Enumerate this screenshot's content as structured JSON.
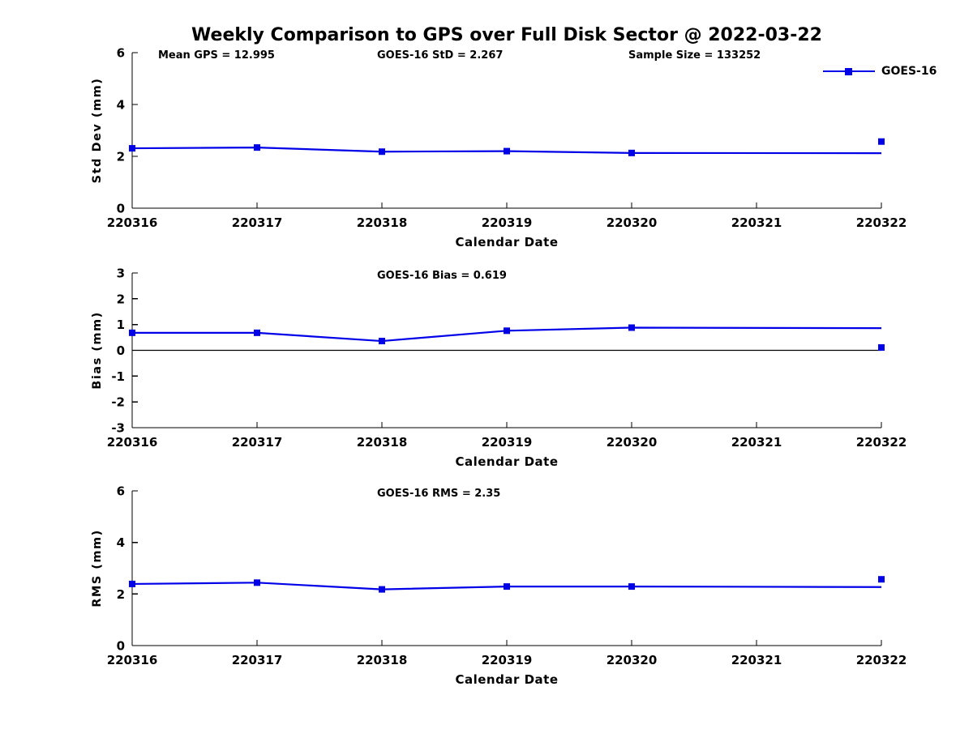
{
  "title": "Weekly Comparison to GPS over Full Disk Sector @ 2022-03-22",
  "legend": {
    "label": "GOES-16"
  },
  "colors": {
    "series": "#0000e8",
    "axis": "#000000",
    "zero_line": "#000000",
    "text": "#000000"
  },
  "chart_data": [
    {
      "type": "line",
      "id": "std-dev",
      "annotations": [
        "Mean GPS = 12.995",
        "GOES-16 StD = 2.267",
        "Sample Size = 133252"
      ],
      "ylabel": "Std Dev (mm)",
      "xlabel": "Calendar Date",
      "ylim": [
        0,
        6
      ],
      "yticks": [
        0,
        2,
        4,
        6
      ],
      "xticklabels": [
        "220316",
        "220317",
        "220318",
        "220319",
        "220320",
        "220321",
        "220322"
      ],
      "legend_entry": "GOES-16",
      "series": [
        {
          "name": "GOES-16",
          "x": [
            "220316",
            "220317",
            "220318",
            "220319",
            "220320",
            "220322"
          ],
          "y": [
            2.31,
            2.34,
            2.18,
            2.2,
            2.13,
            2.12
          ],
          "markers_at": [
            "220316",
            "220317",
            "220318",
            "220319",
            "220320"
          ]
        }
      ],
      "extra_point": {
        "x": "220322",
        "y": 2.57
      },
      "zero_line": false
    },
    {
      "type": "line",
      "id": "bias",
      "annotations": [
        "GOES-16 Bias  = 0.619"
      ],
      "ylabel": "Bias (mm)",
      "xlabel": "Calendar Date",
      "ylim": [
        -3,
        3
      ],
      "yticks": [
        -3,
        -2,
        -1,
        0,
        1,
        2,
        3
      ],
      "xticklabels": [
        "220316",
        "220317",
        "220318",
        "220319",
        "220320",
        "220321",
        "220322"
      ],
      "legend_entry": "GOES-16",
      "series": [
        {
          "name": "GOES-16",
          "x": [
            "220316",
            "220317",
            "220318",
            "220319",
            "220320",
            "220322"
          ],
          "y": [
            0.68,
            0.68,
            0.36,
            0.76,
            0.88,
            0.86
          ],
          "markers_at": [
            "220316",
            "220317",
            "220318",
            "220319",
            "220320"
          ]
        }
      ],
      "extra_point": {
        "x": "220322",
        "y": 0.11
      },
      "zero_line": true
    },
    {
      "type": "line",
      "id": "rms",
      "annotations": [
        "GOES-16 RMS = 2.35"
      ],
      "ylabel": "RMS (mm)",
      "xlabel": "Calendar Date",
      "ylim": [
        0,
        6
      ],
      "yticks": [
        0,
        2,
        4,
        6
      ],
      "xticklabels": [
        "220316",
        "220317",
        "220318",
        "220319",
        "220320",
        "220321",
        "220322"
      ],
      "legend_entry": "GOES-16",
      "series": [
        {
          "name": "GOES-16",
          "x": [
            "220316",
            "220317",
            "220318",
            "220319",
            "220320",
            "220322"
          ],
          "y": [
            2.39,
            2.44,
            2.18,
            2.29,
            2.29,
            2.27
          ],
          "markers_at": [
            "220316",
            "220317",
            "220318",
            "220319",
            "220320"
          ]
        }
      ],
      "extra_point": {
        "x": "220322",
        "y": 2.57
      },
      "zero_line": false
    }
  ]
}
